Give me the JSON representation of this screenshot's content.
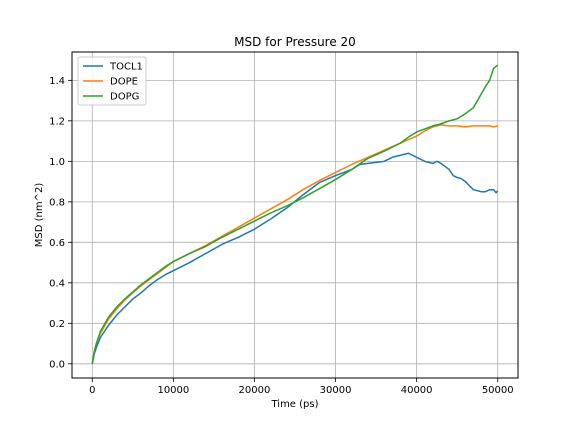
{
  "chart_data": {
    "type": "line",
    "title": "MSD for Pressure 20",
    "xlabel": "Time (ps)",
    "ylabel": "MSD (nm^2)",
    "xlim": [
      -2500,
      52500
    ],
    "ylim": [
      -0.07,
      1.54
    ],
    "xticks": [
      0,
      10000,
      20000,
      30000,
      40000,
      50000
    ],
    "xtick_labels": [
      "0",
      "10000",
      "20000",
      "30000",
      "40000",
      "50000"
    ],
    "yticks": [
      0.0,
      0.2,
      0.4,
      0.6,
      0.8,
      1.0,
      1.2,
      1.4
    ],
    "ytick_labels": [
      "0.0",
      "0.2",
      "0.4",
      "0.6",
      "0.8",
      "1.0",
      "1.2",
      "1.4"
    ],
    "grid": true,
    "legend_position": "top-left",
    "series": [
      {
        "name": "TOCL1",
        "color": "#1f77b4",
        "x": [
          0,
          250,
          500,
          1000,
          2000,
          3000,
          4000,
          5000,
          6000,
          7000,
          8000,
          9000,
          10000,
          12000,
          14000,
          16000,
          18000,
          20000,
          22000,
          24000,
          26000,
          28000,
          30000,
          32000,
          33000,
          34000,
          35000,
          36000,
          37000,
          38000,
          39000,
          40000,
          41000,
          42000,
          42500,
          43000,
          44000,
          44500,
          45000,
          45500,
          46000,
          47000,
          48000,
          48500,
          49000,
          49500,
          49800,
          50000
        ],
        "y": [
          0.0,
          0.05,
          0.08,
          0.13,
          0.19,
          0.24,
          0.28,
          0.32,
          0.35,
          0.385,
          0.415,
          0.44,
          0.46,
          0.5,
          0.545,
          0.59,
          0.625,
          0.665,
          0.715,
          0.77,
          0.835,
          0.895,
          0.93,
          0.96,
          0.985,
          0.99,
          0.995,
          1.0,
          1.02,
          1.03,
          1.04,
          1.02,
          1.0,
          0.99,
          1.0,
          0.99,
          0.96,
          0.93,
          0.92,
          0.915,
          0.9,
          0.86,
          0.85,
          0.85,
          0.86,
          0.86,
          0.845,
          0.855
        ]
      },
      {
        "name": "DOPE",
        "color": "#ff7f0e",
        "x": [
          0,
          250,
          500,
          1000,
          2000,
          3000,
          4000,
          5000,
          6000,
          7000,
          8000,
          9000,
          10000,
          12000,
          14000,
          16000,
          18000,
          20000,
          22000,
          24000,
          26000,
          28000,
          30000,
          32000,
          34000,
          36000,
          38000,
          40000,
          41000,
          42000,
          43000,
          44000,
          45000,
          46000,
          47000,
          48000,
          49000,
          49500,
          50000
        ],
        "y": [
          0.0,
          0.06,
          0.1,
          0.15,
          0.22,
          0.27,
          0.315,
          0.35,
          0.385,
          0.415,
          0.445,
          0.475,
          0.505,
          0.545,
          0.585,
          0.63,
          0.675,
          0.72,
          0.765,
          0.81,
          0.86,
          0.905,
          0.945,
          0.985,
          1.02,
          1.055,
          1.09,
          1.125,
          1.15,
          1.17,
          1.18,
          1.175,
          1.175,
          1.17,
          1.175,
          1.175,
          1.175,
          1.17,
          1.175
        ]
      },
      {
        "name": "DOPG",
        "color": "#2ca02c",
        "x": [
          0,
          250,
          500,
          1000,
          2000,
          3000,
          4000,
          5000,
          6000,
          7000,
          8000,
          9000,
          10000,
          12000,
          14000,
          16000,
          18000,
          20000,
          22000,
          24000,
          26000,
          28000,
          30000,
          32000,
          34000,
          36000,
          38000,
          39000,
          40000,
          41000,
          42000,
          43000,
          44000,
          45000,
          46000,
          47000,
          47500,
          48000,
          48500,
          49000,
          49500,
          50000
        ],
        "y": [
          0.0,
          0.06,
          0.1,
          0.16,
          0.23,
          0.28,
          0.32,
          0.355,
          0.39,
          0.42,
          0.45,
          0.48,
          0.505,
          0.545,
          0.58,
          0.625,
          0.665,
          0.705,
          0.745,
          0.78,
          0.82,
          0.865,
          0.91,
          0.96,
          1.015,
          1.05,
          1.09,
          1.12,
          1.145,
          1.16,
          1.175,
          1.185,
          1.2,
          1.21,
          1.235,
          1.265,
          1.3,
          1.335,
          1.37,
          1.4,
          1.46,
          1.475
        ]
      }
    ]
  }
}
